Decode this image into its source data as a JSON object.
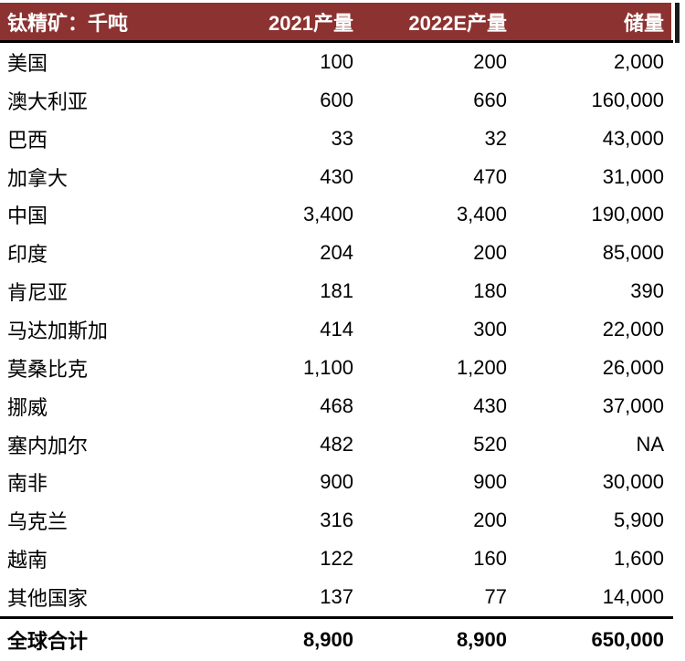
{
  "colors": {
    "header_bg": "#8C3230",
    "header_text": "#FFFFFF",
    "body_text": "#000000",
    "rule": "#000000"
  },
  "chart_data": {
    "type": "table",
    "title": "钛精矿：千吨",
    "columns": [
      "2021产量",
      "2022E产量",
      "储量"
    ],
    "rows": [
      [
        "美国",
        "100",
        "200",
        "2,000"
      ],
      [
        "澳大利亚",
        "600",
        "660",
        "160,000"
      ],
      [
        "巴西",
        "33",
        "32",
        "43,000"
      ],
      [
        "加拿大",
        "430",
        "470",
        "31,000"
      ],
      [
        "中国",
        "3,400",
        "3,400",
        "190,000"
      ],
      [
        "印度",
        "204",
        "200",
        "85,000"
      ],
      [
        "肯尼亚",
        "181",
        "180",
        "390"
      ],
      [
        "马达加斯加",
        "414",
        "300",
        "22,000"
      ],
      [
        "莫桑比克",
        "1,100",
        "1,200",
        "26,000"
      ],
      [
        "挪威",
        "468",
        "430",
        "37,000"
      ],
      [
        "塞内加尔",
        "482",
        "520",
        "NA"
      ],
      [
        "南非",
        "900",
        "900",
        "30,000"
      ],
      [
        "乌克兰",
        "316",
        "200",
        "5,900"
      ],
      [
        "越南",
        "122",
        "160",
        "1,600"
      ],
      [
        "其他国家",
        "137",
        "77",
        "14,000"
      ]
    ],
    "total_row": [
      "全球合计",
      "8,900",
      "8,900",
      "650,000"
    ]
  }
}
